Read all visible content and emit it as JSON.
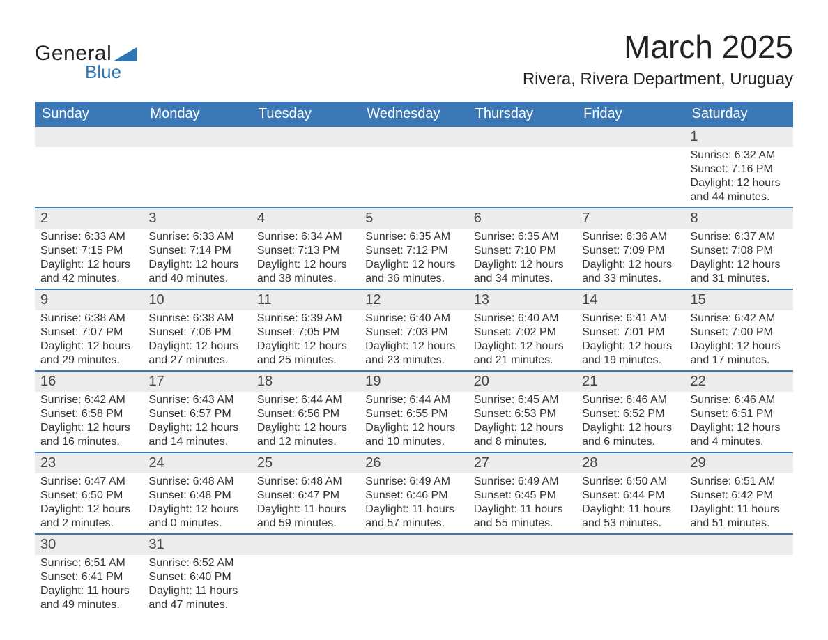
{
  "logo": {
    "text_general": "General",
    "text_blue": "Blue",
    "icon_color": "#2e75b6"
  },
  "header": {
    "title": "March 2025",
    "location": "Rivera, Rivera Department, Uruguay",
    "title_fontsize": 46,
    "location_fontsize": 24,
    "title_color": "#222222"
  },
  "style": {
    "header_bg": "#3b78b5",
    "header_fg": "#ffffff",
    "daynum_bg": "#ececec",
    "row_border": "#3b78b5",
    "text_color": "#333333",
    "body_fontsize": 16,
    "daynum_fontsize": 20,
    "weekday_fontsize": 20
  },
  "weekdays": [
    "Sunday",
    "Monday",
    "Tuesday",
    "Wednesday",
    "Thursday",
    "Friday",
    "Saturday"
  ],
  "weeks": [
    [
      null,
      null,
      null,
      null,
      null,
      null,
      {
        "day": "1",
        "sunrise": "Sunrise: 6:32 AM",
        "sunset": "Sunset: 7:16 PM",
        "daylight1": "Daylight: 12 hours",
        "daylight2": "and 44 minutes."
      }
    ],
    [
      {
        "day": "2",
        "sunrise": "Sunrise: 6:33 AM",
        "sunset": "Sunset: 7:15 PM",
        "daylight1": "Daylight: 12 hours",
        "daylight2": "and 42 minutes."
      },
      {
        "day": "3",
        "sunrise": "Sunrise: 6:33 AM",
        "sunset": "Sunset: 7:14 PM",
        "daylight1": "Daylight: 12 hours",
        "daylight2": "and 40 minutes."
      },
      {
        "day": "4",
        "sunrise": "Sunrise: 6:34 AM",
        "sunset": "Sunset: 7:13 PM",
        "daylight1": "Daylight: 12 hours",
        "daylight2": "and 38 minutes."
      },
      {
        "day": "5",
        "sunrise": "Sunrise: 6:35 AM",
        "sunset": "Sunset: 7:12 PM",
        "daylight1": "Daylight: 12 hours",
        "daylight2": "and 36 minutes."
      },
      {
        "day": "6",
        "sunrise": "Sunrise: 6:35 AM",
        "sunset": "Sunset: 7:10 PM",
        "daylight1": "Daylight: 12 hours",
        "daylight2": "and 34 minutes."
      },
      {
        "day": "7",
        "sunrise": "Sunrise: 6:36 AM",
        "sunset": "Sunset: 7:09 PM",
        "daylight1": "Daylight: 12 hours",
        "daylight2": "and 33 minutes."
      },
      {
        "day": "8",
        "sunrise": "Sunrise: 6:37 AM",
        "sunset": "Sunset: 7:08 PM",
        "daylight1": "Daylight: 12 hours",
        "daylight2": "and 31 minutes."
      }
    ],
    [
      {
        "day": "9",
        "sunrise": "Sunrise: 6:38 AM",
        "sunset": "Sunset: 7:07 PM",
        "daylight1": "Daylight: 12 hours",
        "daylight2": "and 29 minutes."
      },
      {
        "day": "10",
        "sunrise": "Sunrise: 6:38 AM",
        "sunset": "Sunset: 7:06 PM",
        "daylight1": "Daylight: 12 hours",
        "daylight2": "and 27 minutes."
      },
      {
        "day": "11",
        "sunrise": "Sunrise: 6:39 AM",
        "sunset": "Sunset: 7:05 PM",
        "daylight1": "Daylight: 12 hours",
        "daylight2": "and 25 minutes."
      },
      {
        "day": "12",
        "sunrise": "Sunrise: 6:40 AM",
        "sunset": "Sunset: 7:03 PM",
        "daylight1": "Daylight: 12 hours",
        "daylight2": "and 23 minutes."
      },
      {
        "day": "13",
        "sunrise": "Sunrise: 6:40 AM",
        "sunset": "Sunset: 7:02 PM",
        "daylight1": "Daylight: 12 hours",
        "daylight2": "and 21 minutes."
      },
      {
        "day": "14",
        "sunrise": "Sunrise: 6:41 AM",
        "sunset": "Sunset: 7:01 PM",
        "daylight1": "Daylight: 12 hours",
        "daylight2": "and 19 minutes."
      },
      {
        "day": "15",
        "sunrise": "Sunrise: 6:42 AM",
        "sunset": "Sunset: 7:00 PM",
        "daylight1": "Daylight: 12 hours",
        "daylight2": "and 17 minutes."
      }
    ],
    [
      {
        "day": "16",
        "sunrise": "Sunrise: 6:42 AM",
        "sunset": "Sunset: 6:58 PM",
        "daylight1": "Daylight: 12 hours",
        "daylight2": "and 16 minutes."
      },
      {
        "day": "17",
        "sunrise": "Sunrise: 6:43 AM",
        "sunset": "Sunset: 6:57 PM",
        "daylight1": "Daylight: 12 hours",
        "daylight2": "and 14 minutes."
      },
      {
        "day": "18",
        "sunrise": "Sunrise: 6:44 AM",
        "sunset": "Sunset: 6:56 PM",
        "daylight1": "Daylight: 12 hours",
        "daylight2": "and 12 minutes."
      },
      {
        "day": "19",
        "sunrise": "Sunrise: 6:44 AM",
        "sunset": "Sunset: 6:55 PM",
        "daylight1": "Daylight: 12 hours",
        "daylight2": "and 10 minutes."
      },
      {
        "day": "20",
        "sunrise": "Sunrise: 6:45 AM",
        "sunset": "Sunset: 6:53 PM",
        "daylight1": "Daylight: 12 hours",
        "daylight2": "and 8 minutes."
      },
      {
        "day": "21",
        "sunrise": "Sunrise: 6:46 AM",
        "sunset": "Sunset: 6:52 PM",
        "daylight1": "Daylight: 12 hours",
        "daylight2": "and 6 minutes."
      },
      {
        "day": "22",
        "sunrise": "Sunrise: 6:46 AM",
        "sunset": "Sunset: 6:51 PM",
        "daylight1": "Daylight: 12 hours",
        "daylight2": "and 4 minutes."
      }
    ],
    [
      {
        "day": "23",
        "sunrise": "Sunrise: 6:47 AM",
        "sunset": "Sunset: 6:50 PM",
        "daylight1": "Daylight: 12 hours",
        "daylight2": "and 2 minutes."
      },
      {
        "day": "24",
        "sunrise": "Sunrise: 6:48 AM",
        "sunset": "Sunset: 6:48 PM",
        "daylight1": "Daylight: 12 hours",
        "daylight2": "and 0 minutes."
      },
      {
        "day": "25",
        "sunrise": "Sunrise: 6:48 AM",
        "sunset": "Sunset: 6:47 PM",
        "daylight1": "Daylight: 11 hours",
        "daylight2": "and 59 minutes."
      },
      {
        "day": "26",
        "sunrise": "Sunrise: 6:49 AM",
        "sunset": "Sunset: 6:46 PM",
        "daylight1": "Daylight: 11 hours",
        "daylight2": "and 57 minutes."
      },
      {
        "day": "27",
        "sunrise": "Sunrise: 6:49 AM",
        "sunset": "Sunset: 6:45 PM",
        "daylight1": "Daylight: 11 hours",
        "daylight2": "and 55 minutes."
      },
      {
        "day": "28",
        "sunrise": "Sunrise: 6:50 AM",
        "sunset": "Sunset: 6:44 PM",
        "daylight1": "Daylight: 11 hours",
        "daylight2": "and 53 minutes."
      },
      {
        "day": "29",
        "sunrise": "Sunrise: 6:51 AM",
        "sunset": "Sunset: 6:42 PM",
        "daylight1": "Daylight: 11 hours",
        "daylight2": "and 51 minutes."
      }
    ],
    [
      {
        "day": "30",
        "sunrise": "Sunrise: 6:51 AM",
        "sunset": "Sunset: 6:41 PM",
        "daylight1": "Daylight: 11 hours",
        "daylight2": "and 49 minutes."
      },
      {
        "day": "31",
        "sunrise": "Sunrise: 6:52 AM",
        "sunset": "Sunset: 6:40 PM",
        "daylight1": "Daylight: 11 hours",
        "daylight2": "and 47 minutes."
      },
      null,
      null,
      null,
      null,
      null
    ]
  ]
}
